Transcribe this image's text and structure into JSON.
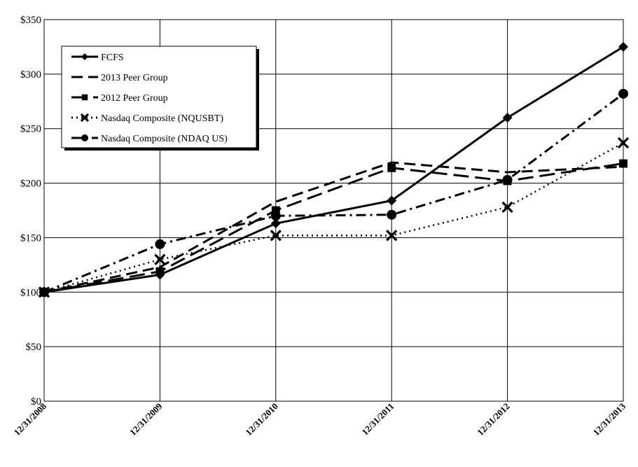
{
  "chart_data": {
    "type": "line",
    "categories": [
      "12/31/2008",
      "12/31/2009",
      "12/31/2010",
      "12/31/2011",
      "12/31/2012",
      "12/31/2013"
    ],
    "ylim": [
      0,
      350
    ],
    "yticks": [
      0,
      50,
      100,
      150,
      200,
      250,
      300,
      350
    ],
    "ytick_labels": [
      "$0",
      "$50",
      "$100",
      "$150",
      "$200",
      "$250",
      "$300",
      "$350"
    ],
    "grid": true,
    "legend_position": "top-left",
    "series": [
      {
        "name": "FCFS",
        "style": "solid",
        "marker": "diamond",
        "values": [
          100,
          116,
          163,
          184,
          260,
          325
        ]
      },
      {
        "name": "2013 Peer Group",
        "style": "dashed",
        "marker": "none",
        "values": [
          100,
          123,
          183,
          219,
          210,
          215
        ]
      },
      {
        "name": "2012 Peer Group",
        "style": "long-dashed",
        "marker": "square",
        "values": [
          100,
          119,
          175,
          214,
          202,
          218
        ]
      },
      {
        "name": "Nasdaq Composite (NQUSBT)",
        "style": "dotted",
        "marker": "x",
        "values": [
          100,
          130,
          152,
          152,
          178,
          237
        ]
      },
      {
        "name": "Nasdaq Composite (NDAQ US)",
        "style": "dash-dot",
        "marker": "circle",
        "values": [
          100,
          144,
          170,
          171,
          203,
          282
        ]
      }
    ]
  }
}
